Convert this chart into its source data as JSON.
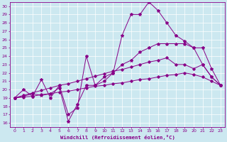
{
  "xlabel": "Windchill (Refroidissement éolien,°C)",
  "bg_color": "#cce8f0",
  "line_color": "#880088",
  "x_ticks": [
    0,
    1,
    2,
    3,
    4,
    5,
    6,
    7,
    8,
    9,
    10,
    11,
    12,
    13,
    14,
    15,
    16,
    17,
    18,
    19,
    20,
    21,
    22,
    23
  ],
  "y_ticks": [
    16,
    17,
    18,
    19,
    20,
    21,
    22,
    23,
    24,
    25,
    26,
    27,
    28,
    29,
    30
  ],
  "ylim": [
    15.5,
    30.5
  ],
  "xlim": [
    -0.5,
    23.5
  ],
  "series_volatile_x": [
    0,
    1,
    2,
    3,
    4,
    5,
    6,
    7,
    8,
    9,
    10,
    11,
    12,
    13,
    14,
    15,
    16,
    17,
    18,
    19,
    20,
    21,
    22,
    23
  ],
  "series_volatile_y": [
    19.0,
    20.0,
    19.2,
    21.2,
    19.0,
    20.5,
    17.0,
    17.8,
    24.0,
    20.5,
    21.0,
    22.0,
    26.5,
    29.0,
    29.0,
    30.5,
    29.5,
    28.0,
    26.5,
    25.8,
    25.0,
    25.0,
    22.5,
    20.5
  ],
  "series_main_x": [
    0,
    1,
    2,
    3,
    4,
    5,
    6,
    7,
    8,
    9,
    10,
    11,
    12,
    13,
    14,
    15,
    16,
    17,
    18,
    19,
    20,
    21,
    22,
    23
  ],
  "series_main_y": [
    19.0,
    19.2,
    19.5,
    19.3,
    19.5,
    20.2,
    16.2,
    18.2,
    20.5,
    20.5,
    21.5,
    22.0,
    23.0,
    23.5,
    24.5,
    25.0,
    25.5,
    25.5,
    25.5,
    25.5,
    25.0,
    23.0,
    21.5,
    20.5
  ],
  "series_smooth1_x": [
    0,
    1,
    2,
    3,
    4,
    5,
    6,
    7,
    8,
    9,
    10,
    11,
    12,
    13,
    14,
    15,
    16,
    17,
    18,
    19,
    20,
    21,
    22,
    23
  ],
  "series_smooth1_y": [
    19.0,
    19.3,
    19.6,
    19.9,
    20.2,
    20.5,
    20.7,
    21.0,
    21.3,
    21.6,
    21.9,
    22.2,
    22.4,
    22.7,
    23.0,
    23.3,
    23.5,
    23.8,
    23.0,
    23.0,
    22.5,
    23.0,
    21.5,
    20.5
  ],
  "series_smooth2_x": [
    0,
    1,
    2,
    3,
    4,
    5,
    6,
    7,
    8,
    9,
    10,
    11,
    12,
    13,
    14,
    15,
    16,
    17,
    18,
    19,
    20,
    21,
    22,
    23
  ],
  "series_smooth2_y": [
    19.0,
    19.1,
    19.2,
    19.4,
    19.5,
    19.7,
    19.8,
    20.0,
    20.2,
    20.4,
    20.5,
    20.7,
    20.8,
    21.0,
    21.2,
    21.3,
    21.5,
    21.7,
    21.8,
    22.0,
    21.8,
    21.5,
    21.0,
    20.5
  ]
}
